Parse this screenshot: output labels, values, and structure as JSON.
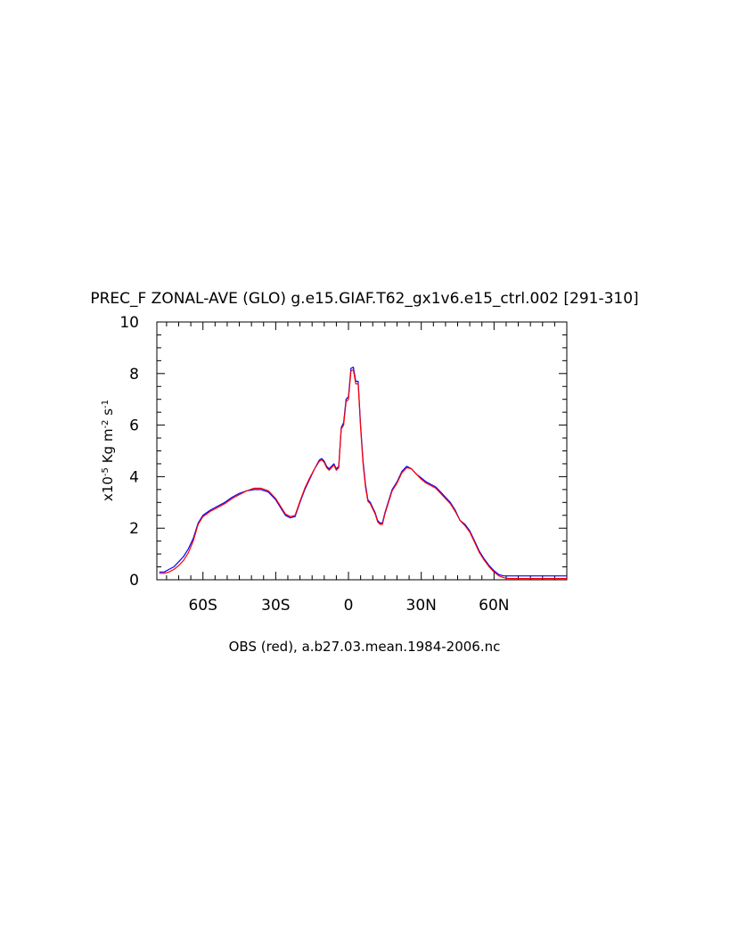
{
  "chart_data": {
    "type": "line",
    "title": "PREC_F ZONAL-AVE (GLO) g.e15.GIAF.T62_gx1v6.e15_ctrl.002 [291-310]",
    "xlabel": "OBS (red), a.b27.03.mean.1984-2006.nc",
    "ylabel_base": "x10",
    "ylabel_exp": "-5",
    "ylabel_unit1": "Kg m",
    "ylabel_exp2": "-2",
    "ylabel_unit2": "s",
    "ylabel_exp3": "-1",
    "xlim": [
      -79,
      90
    ],
    "ylim": [
      0,
      10
    ],
    "x_ticks": [
      {
        "value": -60,
        "label": "60S"
      },
      {
        "value": -30,
        "label": "30S"
      },
      {
        "value": 0,
        "label": "0"
      },
      {
        "value": 30,
        "label": "30N"
      },
      {
        "value": 60,
        "label": "60N"
      }
    ],
    "y_ticks": [
      {
        "value": 0,
        "label": "0"
      },
      {
        "value": 2,
        "label": "2"
      },
      {
        "value": 4,
        "label": "4"
      },
      {
        "value": 6,
        "label": "6"
      },
      {
        "value": 8,
        "label": "8"
      },
      {
        "value": 10,
        "label": "10"
      }
    ],
    "series": [
      {
        "color": "#0000ff",
        "x": [
          -78,
          -76,
          -74,
          -72,
          -70,
          -68,
          -66,
          -64,
          -62,
          -60,
          -57,
          -54,
          -51,
          -48,
          -45,
          -42,
          -39,
          -36,
          -33,
          -30,
          -28,
          -26,
          -24,
          -22,
          -20,
          -18,
          -16,
          -14,
          -12,
          -11,
          -10,
          -9,
          -8,
          -7,
          -6,
          -5,
          -4,
          -3,
          -2,
          -1,
          0,
          1,
          2,
          3,
          4,
          5,
          6,
          7,
          8,
          9,
          10,
          11,
          12,
          13,
          14,
          15,
          16,
          17,
          18,
          20,
          22,
          24,
          26,
          28,
          30,
          32,
          34,
          36,
          38,
          40,
          42,
          44,
          46,
          48,
          50,
          52,
          54,
          56,
          58,
          60,
          62,
          64,
          66,
          68,
          70,
          72,
          74,
          76,
          78,
          80,
          82,
          84,
          86,
          88,
          90
        ],
        "values": [
          0.3,
          0.3,
          0.4,
          0.5,
          0.7,
          0.9,
          1.2,
          1.6,
          2.2,
          2.5,
          2.7,
          2.85,
          3.0,
          3.2,
          3.35,
          3.45,
          3.5,
          3.5,
          3.4,
          3.1,
          2.8,
          2.5,
          2.4,
          2.45,
          3.0,
          3.5,
          3.9,
          4.3,
          4.65,
          4.7,
          4.6,
          4.4,
          4.3,
          4.4,
          4.5,
          4.3,
          4.4,
          5.9,
          6.1,
          7.0,
          7.1,
          8.2,
          8.25,
          7.7,
          7.7,
          6.0,
          4.6,
          3.7,
          3.1,
          3.0,
          2.8,
          2.6,
          2.3,
          2.2,
          2.2,
          2.6,
          2.9,
          3.2,
          3.5,
          3.8,
          4.2,
          4.4,
          4.3,
          4.1,
          3.95,
          3.8,
          3.7,
          3.6,
          3.4,
          3.2,
          3.0,
          2.7,
          2.3,
          2.15,
          1.9,
          1.5,
          1.1,
          0.8,
          0.55,
          0.35,
          0.2,
          0.15,
          0.15,
          0.15,
          0.15,
          0.15,
          0.15,
          0.15,
          0.15,
          0.15,
          0.15,
          0.15,
          0.15,
          0.15,
          0.15
        ]
      },
      {
        "color": "#ff0000",
        "x": [
          -78,
          -76,
          -74,
          -72,
          -70,
          -68,
          -66,
          -64,
          -62,
          -60,
          -57,
          -54,
          -51,
          -48,
          -45,
          -42,
          -39,
          -36,
          -33,
          -30,
          -28,
          -26,
          -24,
          -22,
          -20,
          -18,
          -16,
          -14,
          -12,
          -11,
          -10,
          -9,
          -8,
          -7,
          -6,
          -5,
          -4,
          -3,
          -2,
          -1,
          0,
          1,
          2,
          3,
          4,
          5,
          6,
          7,
          8,
          9,
          10,
          11,
          12,
          13,
          14,
          15,
          16,
          17,
          18,
          20,
          22,
          24,
          26,
          28,
          30,
          32,
          34,
          36,
          38,
          40,
          42,
          44,
          46,
          48,
          50,
          52,
          54,
          56,
          58,
          60,
          62,
          64,
          66,
          68,
          70,
          72,
          74,
          76,
          78,
          80,
          82,
          84,
          86,
          88,
          90
        ],
        "values": [
          0.25,
          0.25,
          0.3,
          0.4,
          0.55,
          0.75,
          1.05,
          1.5,
          2.15,
          2.45,
          2.65,
          2.8,
          2.95,
          3.15,
          3.3,
          3.45,
          3.55,
          3.55,
          3.45,
          3.15,
          2.85,
          2.55,
          2.45,
          2.5,
          3.05,
          3.55,
          3.95,
          4.3,
          4.6,
          4.65,
          4.55,
          4.35,
          4.25,
          4.35,
          4.45,
          4.25,
          4.35,
          5.85,
          6.0,
          6.9,
          7.0,
          8.1,
          8.15,
          7.6,
          7.6,
          5.9,
          4.5,
          3.6,
          3.05,
          2.95,
          2.75,
          2.55,
          2.25,
          2.15,
          2.15,
          2.55,
          2.85,
          3.15,
          3.45,
          3.75,
          4.15,
          4.35,
          4.3,
          4.1,
          3.9,
          3.75,
          3.65,
          3.55,
          3.35,
          3.15,
          2.95,
          2.65,
          2.3,
          2.1,
          1.85,
          1.45,
          1.05,
          0.75,
          0.5,
          0.3,
          0.15,
          0.08,
          0.05,
          0.05,
          0.05,
          0.05,
          0.05,
          0.05,
          0.05,
          0.05,
          0.05,
          0.05,
          0.05,
          0.05,
          0.05
        ]
      }
    ],
    "grid": false,
    "legend": false
  }
}
